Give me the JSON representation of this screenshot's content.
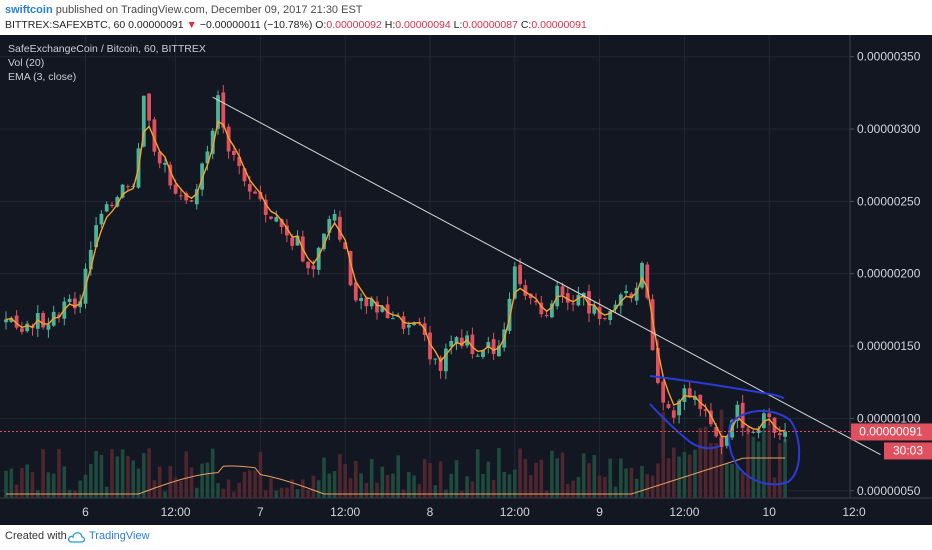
{
  "header": {
    "author": "swiftcoin",
    "published_text": "published on TradingView.com, December 09, 2017 21:30 EST",
    "symbol": "BITTREX:SAFEXBTC, 60",
    "last_price": "0.00000091",
    "change_arrow": "▼",
    "change": "−0.00000011 (−10.78%)",
    "open_label": "O:",
    "open": "0.00000092",
    "high_label": "H:",
    "high": "0.00000094",
    "low_label": "L:",
    "low": "0.00000087",
    "close_label": "C:",
    "close": "0.00000091"
  },
  "legend": {
    "title": "SafeExchangeCoin / Bitcoin, 60, BITTREX",
    "vol": "Vol (20)",
    "ema": "EMA (3, close)"
  },
  "price_tag": "0.00000091",
  "countdown": "30:03",
  "footer": {
    "created_with": "Created with",
    "brand": "TradingView"
  },
  "colors": {
    "background": "#131722",
    "up": "#4db396",
    "down": "#e0505f",
    "ema": "#f7a030",
    "trendline": "#d8d8d8",
    "annotation": "#2b3bd6",
    "price_tag_bg": "#e0505f"
  },
  "chart_data": {
    "type": "candlestick",
    "ylim": [
      4.5e-07,
      3.65e-06
    ],
    "y_ticks": [
      "0.00000350",
      "0.00000300",
      "0.00000250",
      "0.00000200",
      "0.00000150",
      "0.00000100",
      "0.00000050"
    ],
    "y_tick_values": [
      3.5e-06,
      3e-06,
      2.5e-06,
      2e-06,
      1.5e-06,
      1e-06,
      5e-07
    ],
    "x_ticks": [
      "6",
      "12:00",
      "7",
      "12:00",
      "8",
      "12:00",
      "9",
      "12:00",
      "10",
      "12:0"
    ],
    "x_tick_bars": [
      15,
      32,
      48,
      64,
      80,
      96,
      112,
      128,
      144,
      160
    ],
    "bar_count": 148,
    "anchors": [
      [
        0,
        1.63e-06
      ],
      [
        8,
        1.68e-06
      ],
      [
        14,
        1.83e-06
      ],
      [
        17,
        2.4e-06
      ],
      [
        20,
        2.5e-06
      ],
      [
        24,
        2.65e-06
      ],
      [
        26,
        3.2e-06
      ],
      [
        28,
        2.8e-06
      ],
      [
        30,
        2.7e-06
      ],
      [
        34,
        2.45e-06
      ],
      [
        36,
        2.6e-06
      ],
      [
        38,
        2.8e-06
      ],
      [
        40,
        3.2e-06
      ],
      [
        42,
        2.9e-06
      ],
      [
        44,
        2.7e-06
      ],
      [
        46,
        2.5e-06
      ],
      [
        50,
        2.45e-06
      ],
      [
        54,
        2.25e-06
      ],
      [
        58,
        2.05e-06
      ],
      [
        60,
        2.25e-06
      ],
      [
        62,
        2.4e-06
      ],
      [
        66,
        1.85e-06
      ],
      [
        70,
        1.75e-06
      ],
      [
        74,
        1.65e-06
      ],
      [
        78,
        1.6e-06
      ],
      [
        82,
        1.35e-06
      ],
      [
        84,
        1.55e-06
      ],
      [
        88,
        1.5e-06
      ],
      [
        92,
        1.45e-06
      ],
      [
        94,
        1.6e-06
      ],
      [
        96,
        2e-06
      ],
      [
        98,
        1.9e-06
      ],
      [
        100,
        1.8e-06
      ],
      [
        102,
        1.75e-06
      ],
      [
        104,
        1.85e-06
      ],
      [
        106,
        1.8e-06
      ],
      [
        108,
        1.9e-06
      ],
      [
        110,
        1.7e-06
      ],
      [
        114,
        1.75e-06
      ],
      [
        118,
        1.85e-06
      ],
      [
        120,
        2.05e-06
      ],
      [
        122,
        1.5e-06
      ],
      [
        124,
        1.1e-06
      ],
      [
        126,
        1e-06
      ],
      [
        128,
        1.2e-06
      ],
      [
        130,
        1.15e-06
      ],
      [
        134,
        9e-07
      ],
      [
        136,
        8.2e-07
      ],
      [
        138,
        1.05e-06
      ],
      [
        140,
        9.5e-07
      ],
      [
        142,
        9.5e-07
      ],
      [
        144,
        1e-06
      ],
      [
        147,
        9.1e-07
      ]
    ],
    "trendline": {
      "from": [
        39,
        3.22e-06
      ],
      "to": [
        165,
        7.5e-07
      ]
    },
    "current_price": 9.1e-07
  }
}
